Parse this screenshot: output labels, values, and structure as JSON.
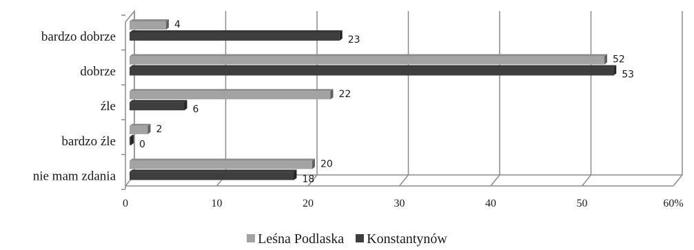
{
  "chart_data": {
    "type": "bar",
    "orientation": "horizontal",
    "three_d": true,
    "categories": [
      "bardzo dobrze",
      "dobrze",
      "źle",
      "bardzo źle",
      "nie mam zdania"
    ],
    "series": [
      {
        "name": "Leśna Podlaska",
        "values": [
          4,
          52,
          22,
          2,
          20
        ],
        "color": "#a3a3a3"
      },
      {
        "name": "Konstantynów",
        "values": [
          23,
          53,
          6,
          0,
          18
        ],
        "color": "#3e3e3e"
      }
    ],
    "x_ticks": [
      "0",
      "10",
      "20",
      "30",
      "40",
      "50",
      "60%"
    ],
    "xlim": [
      0,
      60
    ],
    "grid": true,
    "legend_position": "bottom"
  }
}
